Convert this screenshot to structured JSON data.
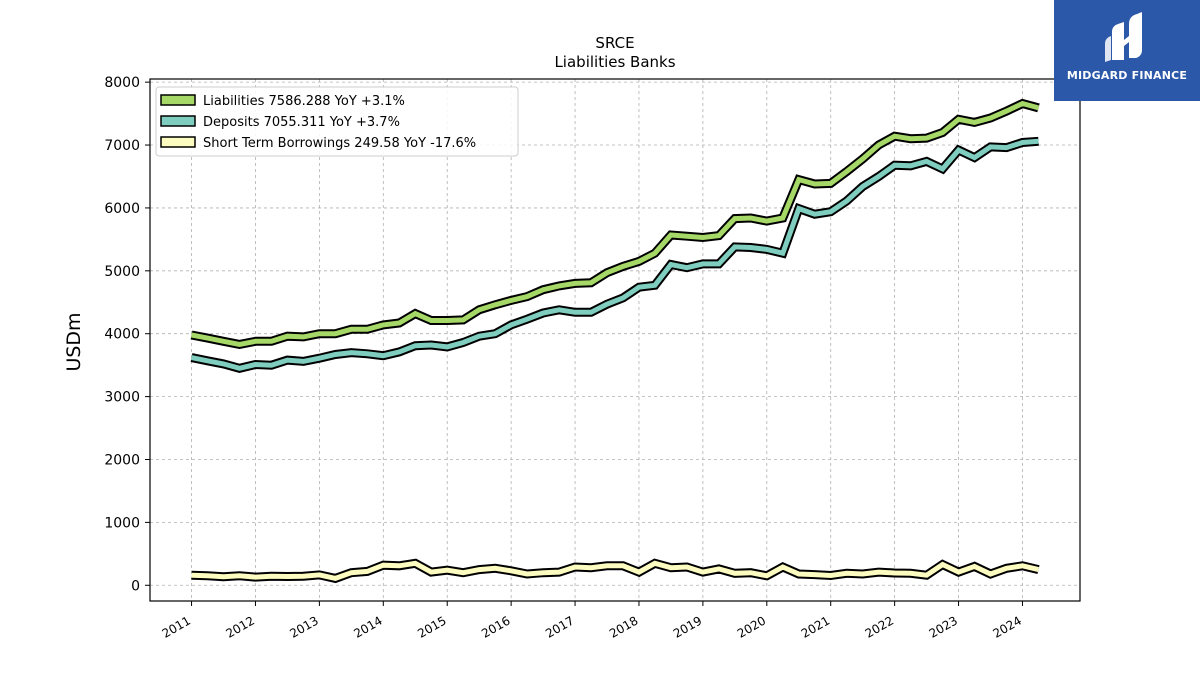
{
  "logo": {
    "text": "MIDGARD FINANCE"
  },
  "chart_data": {
    "type": "line",
    "title": "SRCE",
    "subtitle": "Liabilities Banks",
    "ylabel": "USDm",
    "xlabel": "",
    "ylim": [
      -250,
      8050
    ],
    "xlim": [
      2010.35,
      2024.9
    ],
    "yticks": [
      0,
      1000,
      2000,
      3000,
      4000,
      5000,
      6000,
      7000,
      8000
    ],
    "xticks": [
      2011,
      2012,
      2013,
      2014,
      2015,
      2016,
      2017,
      2018,
      2019,
      2020,
      2021,
      2022,
      2023,
      2024
    ],
    "xtick_labels": [
      "2011",
      "2012",
      "2013",
      "2014",
      "2015",
      "2016",
      "2017",
      "2018",
      "2019",
      "2020",
      "2021",
      "2022",
      "2023",
      "2024"
    ],
    "grid": true,
    "legend_position": "top-left",
    "x": [
      2011.0,
      2011.25,
      2011.5,
      2011.75,
      2012.0,
      2012.25,
      2012.5,
      2012.75,
      2013.0,
      2013.25,
      2013.5,
      2013.75,
      2014.0,
      2014.25,
      2014.5,
      2014.75,
      2015.0,
      2015.25,
      2015.5,
      2015.75,
      2016.0,
      2016.25,
      2016.5,
      2016.75,
      2017.0,
      2017.25,
      2017.5,
      2017.75,
      2018.0,
      2018.25,
      2018.5,
      2018.75,
      2019.0,
      2019.25,
      2019.5,
      2019.75,
      2020.0,
      2020.25,
      2020.5,
      2020.75,
      2021.0,
      2021.25,
      2021.5,
      2021.75,
      2022.0,
      2022.25,
      2022.5,
      2022.75,
      2023.0,
      2023.25,
      2023.5,
      2023.75,
      2024.0,
      2024.25
    ],
    "series": [
      {
        "name": "Liabilities",
        "legend_label": "Liabilities  7586.288 YoY +3.1%",
        "color": "#a5d867",
        "values": [
          3980,
          3930,
          3880,
          3830,
          3880,
          3880,
          3960,
          3950,
          4000,
          4000,
          4070,
          4070,
          4140,
          4170,
          4320,
          4210,
          4210,
          4220,
          4380,
          4460,
          4530,
          4590,
          4700,
          4760,
          4800,
          4810,
          4970,
          5070,
          5150,
          5280,
          5570,
          5550,
          5530,
          5560,
          5830,
          5840,
          5790,
          5840,
          6450,
          6380,
          6390,
          6580,
          6780,
          7000,
          7140,
          7100,
          7110,
          7200,
          7410,
          7360,
          7430,
          7540,
          7660,
          7590
        ]
      },
      {
        "name": "Deposits",
        "legend_label": "Deposits  7055.311 YoY +3.7%",
        "color": "#7ecdbf",
        "values": [
          3620,
          3570,
          3520,
          3450,
          3510,
          3500,
          3580,
          3560,
          3610,
          3670,
          3700,
          3680,
          3650,
          3710,
          3810,
          3820,
          3790,
          3860,
          3960,
          4000,
          4140,
          4230,
          4330,
          4380,
          4340,
          4340,
          4470,
          4570,
          4740,
          4770,
          5100,
          5050,
          5110,
          5110,
          5380,
          5370,
          5340,
          5280,
          5990,
          5900,
          5940,
          6110,
          6340,
          6500,
          6680,
          6670,
          6740,
          6620,
          6920,
          6800,
          6970,
          6960,
          7040,
          7060
        ]
      },
      {
        "name": "Short Term Borrowings",
        "legend_label": "Short Term Borrowings  249.58 YoY -17.6%",
        "color": "#fdfcc0",
        "values": [
          160,
          150,
          135,
          150,
          130,
          145,
          140,
          145,
          165,
          110,
          200,
          220,
          320,
          310,
          350,
          210,
          240,
          200,
          250,
          270,
          230,
          180,
          200,
          210,
          290,
          280,
          310,
          310,
          210,
          350,
          280,
          290,
          210,
          260,
          190,
          200,
          150,
          290,
          180,
          170,
          155,
          190,
          180,
          210,
          195,
          190,
          160,
          330,
          210,
          300,
          180,
          270,
          310,
          250
        ]
      }
    ]
  }
}
